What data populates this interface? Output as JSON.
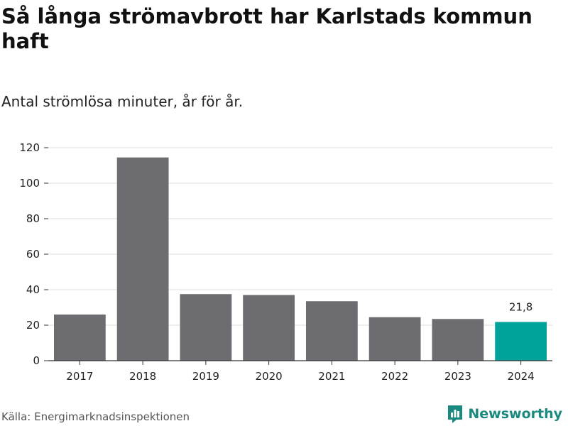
{
  "chart_data": {
    "type": "bar",
    "title": "Så långa strömavbrott har Karlstads kommun haft",
    "subtitle": "Antal strömlösa minuter, år för år.",
    "categories": [
      "2017",
      "2018",
      "2019",
      "2020",
      "2021",
      "2022",
      "2023",
      "2024"
    ],
    "values": [
      26,
      114.5,
      37.5,
      37,
      33.5,
      24.5,
      23.5,
      21.8
    ],
    "highlight_index": 7,
    "data_labels": [
      {
        "index": 7,
        "text": "21,8"
      }
    ],
    "y_ticks": [
      0,
      20,
      40,
      60,
      80,
      100,
      120
    ],
    "ylim": [
      0,
      120
    ],
    "grid": true,
    "colors": {
      "bar": "#6d6c71",
      "highlight": "#00a39a",
      "grid": "#dddddd",
      "axis": "#333333"
    }
  },
  "source": "Källa: Energimarknadsinspektionen",
  "brand": {
    "name": "Newsworthy",
    "icon": "bar-chart-logo-icon",
    "color": "#1a8a80"
  }
}
